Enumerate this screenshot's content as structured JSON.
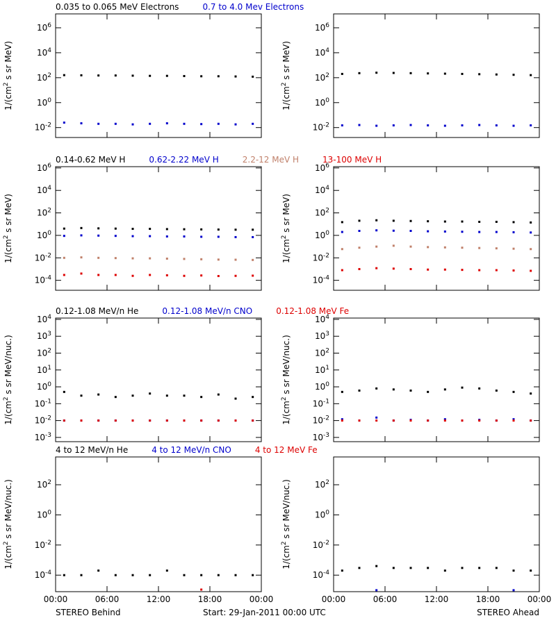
{
  "chart_data": {
    "type": "scatter",
    "log": true,
    "xlim": [
      0,
      24
    ],
    "xticks": [
      {
        "value": 0,
        "label": "00:00"
      },
      {
        "value": 6,
        "label": "06:00"
      },
      {
        "value": 12,
        "label": "12:00"
      },
      {
        "value": 18,
        "label": "18:00"
      },
      {
        "value": 24,
        "label": "00:00"
      }
    ],
    "x": [
      1,
      3,
      5,
      7,
      9,
      11,
      13,
      15,
      17,
      19,
      21,
      23
    ],
    "rows": [
      {
        "ylabel": "1/(cm^2 s sr MeV)",
        "ylim": [
          0.0016,
          13000000
        ],
        "yticks": [
          {
            "value": 1000000,
            "label": "10^6"
          },
          {
            "value": 10000,
            "label": "10^4"
          },
          {
            "value": 100,
            "label": "10^2"
          },
          {
            "value": 1,
            "label": "10^0"
          },
          {
            "value": 0.01,
            "label": "10^-2"
          }
        ],
        "series": [
          {
            "name": "0.035 to 0.065 MeV Electrons",
            "color": "#000000",
            "values": [
              160,
              155,
              150,
              150,
              145,
              140,
              140,
              135,
              130,
              130,
              125,
              120
            ],
            "values_ahead": [
              200,
              230,
              250,
              240,
              230,
              220,
              210,
              200,
              190,
              180,
              170,
              160
            ]
          },
          {
            "name": "0.7 to 4.0 Mev Electrons",
            "color": "#0000cc",
            "values": [
              0.025,
              0.022,
              0.02,
              0.02,
              0.018,
              0.02,
              0.022,
              0.02,
              0.019,
              0.02,
              0.018,
              0.02
            ],
            "values_ahead": [
              0.015,
              0.016,
              0.014,
              0.015,
              0.016,
              0.015,
              0.014,
              0.015,
              0.016,
              0.015,
              0.014,
              0.015
            ]
          }
        ]
      },
      {
        "ylabel": "1/(cm^2 s sr MeV)",
        "ylim": [
          1.3e-05,
          1300000
        ],
        "yticks": [
          {
            "value": 1000000,
            "label": "10^6"
          },
          {
            "value": 10000,
            "label": "10^4"
          },
          {
            "value": 100,
            "label": "10^2"
          },
          {
            "value": 1,
            "label": "10^0"
          },
          {
            "value": 0.01,
            "label": "10^-2"
          },
          {
            "value": 0.0001,
            "label": "10^-4"
          }
        ],
        "series": [
          {
            "name": "0.14-0.62 MeV H",
            "color": "#000000",
            "values": [
              4,
              4.5,
              4.2,
              4,
              3.8,
              3.8,
              3.6,
              3.5,
              3.4,
              3.3,
              3.2,
              3.2
            ],
            "values_ahead": [
              15,
              20,
              22,
              20,
              19,
              18,
              17,
              17,
              16,
              16,
              15,
              14
            ]
          },
          {
            "name": "0.62-2.22 MeV H",
            "color": "#0000cc",
            "values": [
              0.9,
              1.0,
              0.95,
              0.9,
              0.85,
              0.85,
              0.8,
              0.8,
              0.75,
              0.75,
              0.7,
              0.7
            ],
            "values_ahead": [
              2,
              2.5,
              2.8,
              2.6,
              2.5,
              2.3,
              2.2,
              2.1,
              2,
              2,
              1.9,
              1.8
            ]
          },
          {
            "name": "2.2-12 MeV H",
            "color": "#c0806a",
            "values": [
              0.01,
              0.011,
              0.01,
              0.0095,
              0.009,
              0.009,
              0.0085,
              0.008,
              0.0075,
              0.007,
              0.0068,
              0.0065
            ],
            "values_ahead": [
              0.06,
              0.08,
              0.1,
              0.12,
              0.1,
              0.09,
              0.085,
              0.08,
              0.075,
              0.07,
              0.065,
              0.06
            ]
          },
          {
            "name": "13-100 MeV H",
            "color": "#dd0000",
            "values": [
              0.0003,
              0.0004,
              0.0003,
              0.0003,
              0.00025,
              0.0003,
              0.00028,
              0.00025,
              0.00027,
              0.00024,
              0.00025,
              0.00026
            ],
            "values_ahead": [
              0.0008,
              0.001,
              0.0012,
              0.0011,
              0.001,
              0.0009,
              0.0009,
              0.00085,
              0.0008,
              0.0008,
              0.00075,
              0.0007
            ]
          }
        ]
      },
      {
        "ylabel": "1/(cm^2 s sr MeV/nuc.)",
        "ylim": [
          0.00056,
          12000
        ],
        "yticks": [
          {
            "value": 10000,
            "label": "10^4"
          },
          {
            "value": 1000,
            "label": "10^3"
          },
          {
            "value": 100,
            "label": "10^2"
          },
          {
            "value": 10,
            "label": "10^1"
          },
          {
            "value": 1,
            "label": "10^0"
          },
          {
            "value": 0.1,
            "label": "10^-1"
          },
          {
            "value": 0.01,
            "label": "10^-2"
          },
          {
            "value": 0.001,
            "label": "10^-3"
          }
        ],
        "series": [
          {
            "name": "0.12-1.08 MeV/n He",
            "color": "#000000",
            "values": [
              0.5,
              0.3,
              0.35,
              0.25,
              0.3,
              0.4,
              0.3,
              0.3,
              0.25,
              0.35,
              0.2,
              0.25
            ],
            "values_ahead": [
              0.5,
              0.6,
              0.8,
              0.7,
              0.6,
              0.5,
              0.7,
              0.9,
              0.8,
              0.6,
              0.5,
              0.4
            ]
          },
          {
            "name": "0.12-1.08 MeV/n CNO",
            "color": "#0000cc",
            "values": [
              0.01,
              0.01,
              0.01,
              0.01,
              0.01,
              0.01,
              0.01,
              0.01,
              0.01,
              0.01,
              0.01,
              0.01
            ],
            "values_ahead": [
              0.012,
              0.01,
              0.015,
              0.01,
              0.011,
              0.01,
              0.012,
              0.01,
              0.011,
              0.01,
              0.012,
              0.01
            ]
          },
          {
            "name": "0.12-1.08 MeV Fe",
            "color": "#dd0000",
            "values": [
              0.01,
              0.01,
              0.01,
              0.01,
              0.01,
              0.01,
              0.01,
              0.01,
              0.01,
              0.01,
              0.01,
              0.01
            ],
            "values_ahead": [
              0.01,
              0.01,
              0.01,
              0.01,
              0.01,
              0.01,
              0.01,
              0.01,
              0.01,
              0.01,
              0.01,
              0.01
            ]
          }
        ]
      },
      {
        "ylabel": "1/(cm^2 s sr MeV/nuc.)",
        "ylim": [
          8e-06,
          7000
        ],
        "yticks": [
          {
            "value": 100,
            "label": "10^2"
          },
          {
            "value": 1,
            "label": "10^0"
          },
          {
            "value": 0.01,
            "label": "10^-2"
          },
          {
            "value": 0.0001,
            "label": "10^-4"
          }
        ],
        "series": [
          {
            "name": "4 to 12 MeV/n He",
            "color": "#000000",
            "values": [
              0.0001,
              0.0001,
              0.0002,
              0.0001,
              0.0001,
              0.0001,
              0.0002,
              0.0001,
              0.0001,
              0.0001,
              0.0001,
              0.0001
            ],
            "values_ahead": [
              0.0002,
              0.0003,
              0.0004,
              0.0003,
              0.0003,
              0.0003,
              0.0002,
              0.0003,
              0.0003,
              0.0003,
              0.0002,
              0.0002
            ]
          },
          {
            "name": "4 to 12 MeV/n CNO",
            "color": "#0000cc",
            "values": [
              null,
              null,
              null,
              null,
              null,
              null,
              null,
              null,
              null,
              null,
              null,
              null
            ],
            "values_ahead": [
              null,
              null,
              1e-05,
              null,
              null,
              null,
              null,
              null,
              null,
              null,
              1e-05,
              null
            ]
          },
          {
            "name": "4 to 12 MeV Fe",
            "color": "#dd0000",
            "values": [
              null,
              null,
              null,
              null,
              null,
              null,
              null,
              null,
              1.1e-05,
              null,
              null,
              null
            ],
            "values_ahead": [
              null,
              null,
              null,
              null,
              null,
              null,
              null,
              null,
              null,
              null,
              null,
              null
            ]
          }
        ]
      }
    ],
    "footer": {
      "left": "STEREO Behind",
      "center": "Start: 29-Jan-2011 00:00 UTC",
      "right": "STEREO Ahead"
    }
  }
}
